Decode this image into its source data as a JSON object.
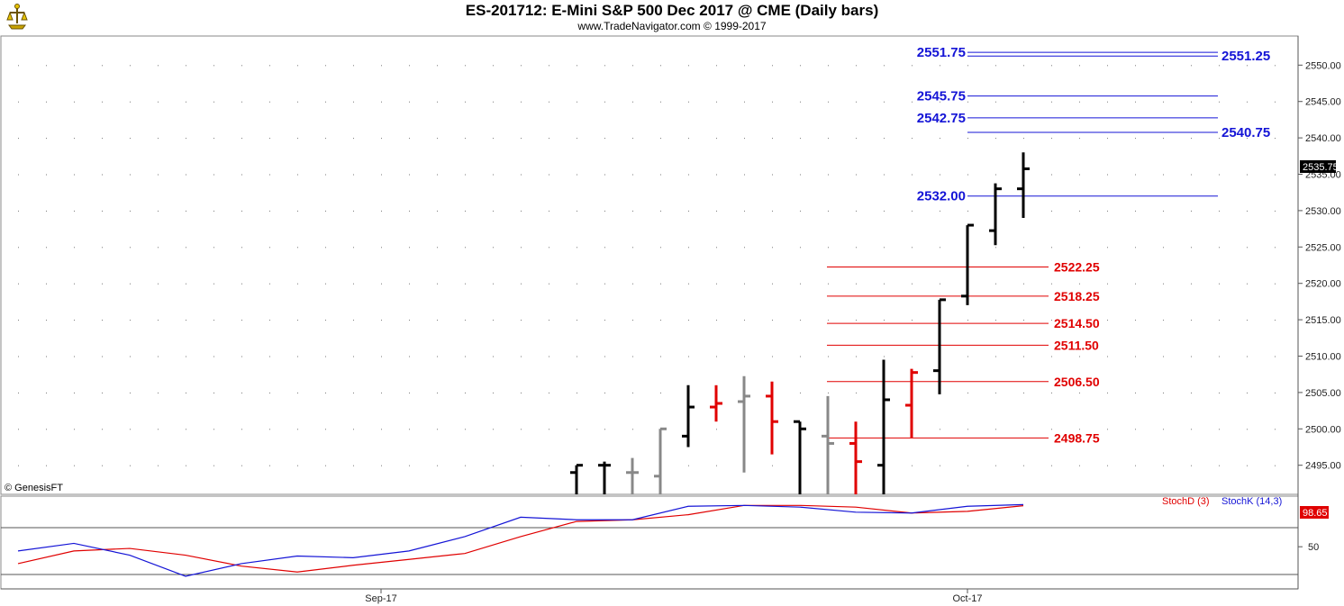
{
  "header": {
    "title": "ES-201712:  E-Mini S&P 500 Dec 2017 @ CME  (Daily bars)",
    "subtitle": "www.TradeNavigator.com © 1999-2017"
  },
  "copyright": "© GenesisFT",
  "colors": {
    "bar_up": "#000000",
    "bar_down": "#e00000",
    "bar_neutral": "#888888",
    "level_blue": "#1414d6",
    "level_red": "#e00000",
    "stochD": "#e00000",
    "stochK": "#1414d6"
  },
  "chart_data": [
    {
      "type": "ohlc",
      "title": "ES-201712:  E-Mini S&P 500 Dec 2017 @ CME  (Daily bars)",
      "ylim": [
        2491,
        2554
      ],
      "y_ticks": [
        "2495.00",
        "2500.00",
        "2505.00",
        "2510.00",
        "2515.00",
        "2520.00",
        "2525.00",
        "2530.00",
        "2535.00",
        "2540.00",
        "2545.00",
        "2550.00"
      ],
      "x_ticks": [
        {
          "label": "Sep-17",
          "index": -21
        },
        {
          "label": "Oct-17",
          "index": 0
        }
      ],
      "last_price": "2535.75",
      "bars": [
        {
          "i": -14,
          "o": 2494.0,
          "h": 2495.0,
          "l": 2491.0,
          "c": 2495.0,
          "color": "black"
        },
        {
          "i": -13,
          "o": 2495.0,
          "h": 2495.5,
          "l": 2491.0,
          "c": 2495.0,
          "color": "black"
        },
        {
          "i": -12,
          "o": 2494.0,
          "h": 2496.0,
          "l": 2491.0,
          "c": 2494.0,
          "color": "gray"
        },
        {
          "i": -11,
          "o": 2493.5,
          "h": 2500.0,
          "l": 2491.0,
          "c": 2500.0,
          "color": "gray"
        },
        {
          "i": -10,
          "o": 2499.0,
          "h": 2506.0,
          "l": 2497.5,
          "c": 2503.0,
          "color": "black"
        },
        {
          "i": -9,
          "o": 2503.0,
          "h": 2506.0,
          "l": 2501.0,
          "c": 2503.5,
          "color": "red"
        },
        {
          "i": -8,
          "o": 2503.75,
          "h": 2507.25,
          "l": 2494.0,
          "c": 2504.5,
          "color": "gray"
        },
        {
          "i": -7,
          "o": 2504.5,
          "h": 2506.5,
          "l": 2496.5,
          "c": 2501.0,
          "color": "red"
        },
        {
          "i": -6,
          "o": 2501.0,
          "h": 2501.0,
          "l": 2491.0,
          "c": 2500.0,
          "color": "black"
        },
        {
          "i": -5,
          "o": 2499.0,
          "h": 2504.5,
          "l": 2491.0,
          "c": 2498.0,
          "color": "gray"
        },
        {
          "i": -4,
          "o": 2498.0,
          "h": 2501.0,
          "l": 2491.0,
          "c": 2495.5,
          "color": "red"
        },
        {
          "i": -3,
          "o": 2495.0,
          "h": 2509.5,
          "l": 2491.0,
          "c": 2504.0,
          "color": "black"
        },
        {
          "i": -2,
          "o": 2503.25,
          "h": 2508.25,
          "l": 2498.75,
          "c": 2507.75,
          "color": "red"
        },
        {
          "i": -1,
          "o": 2508.0,
          "h": 2517.75,
          "l": 2504.75,
          "c": 2517.75,
          "color": "black"
        },
        {
          "i": 0,
          "o": 2518.25,
          "h": 2528.0,
          "l": 2517.0,
          "c": 2528.0,
          "color": "black"
        },
        {
          "i": 1,
          "o": 2527.25,
          "h": 2533.75,
          "l": 2525.25,
          "c": 2533.0,
          "color": "black"
        },
        {
          "i": 2,
          "o": 2533.0,
          "h": 2538.0,
          "l": 2529.0,
          "c": 2535.75,
          "color": "black"
        }
      ],
      "levels_blue": [
        {
          "value": 2551.75,
          "label": "2551.75",
          "side": "left"
        },
        {
          "value": 2551.25,
          "label": "2551.25",
          "side": "right"
        },
        {
          "value": 2545.75,
          "label": "2545.75",
          "side": "left"
        },
        {
          "value": 2542.75,
          "label": "2542.75",
          "side": "left"
        },
        {
          "value": 2540.75,
          "label": "2540.75",
          "side": "right"
        },
        {
          "value": 2532.0,
          "label": "2532.00",
          "side": "left"
        }
      ],
      "levels_red": [
        {
          "value": 2522.25,
          "label": "2522.25"
        },
        {
          "value": 2518.25,
          "label": "2518.25"
        },
        {
          "value": 2514.5,
          "label": "2514.50"
        },
        {
          "value": 2511.5,
          "label": "2511.50"
        },
        {
          "value": 2506.5,
          "label": "2506.50"
        },
        {
          "value": 2498.75,
          "label": "2498.75"
        }
      ]
    },
    {
      "type": "line",
      "ylim": [
        0,
        110
      ],
      "y_ticks": [
        "50"
      ],
      "last_value": "98.65",
      "series": [
        {
          "name": "StochD (3)",
          "x": [
            -34,
            -32,
            -30,
            -28,
            -26,
            -24,
            -22,
            -20,
            -18,
            -16,
            -14,
            -12,
            -10,
            -8,
            -6,
            -4,
            -2,
            0,
            2
          ],
          "values": [
            30,
            45,
            48,
            40,
            27,
            20,
            28,
            35,
            42,
            62,
            80,
            82,
            88,
            99,
            99,
            97,
            90,
            92,
            98.65
          ]
        },
        {
          "name": "StochK (14,3)",
          "x": [
            -34,
            -32,
            -30,
            -28,
            -26,
            -24,
            -22,
            -20,
            -18,
            -16,
            -14,
            -12,
            -10,
            -8,
            -6,
            -4,
            -2,
            0,
            2
          ],
          "values": [
            45,
            54,
            40,
            15,
            30,
            39,
            37,
            45,
            62,
            85,
            82,
            82,
            98,
            99,
            97,
            91,
            90,
            98,
            100
          ]
        }
      ]
    }
  ]
}
